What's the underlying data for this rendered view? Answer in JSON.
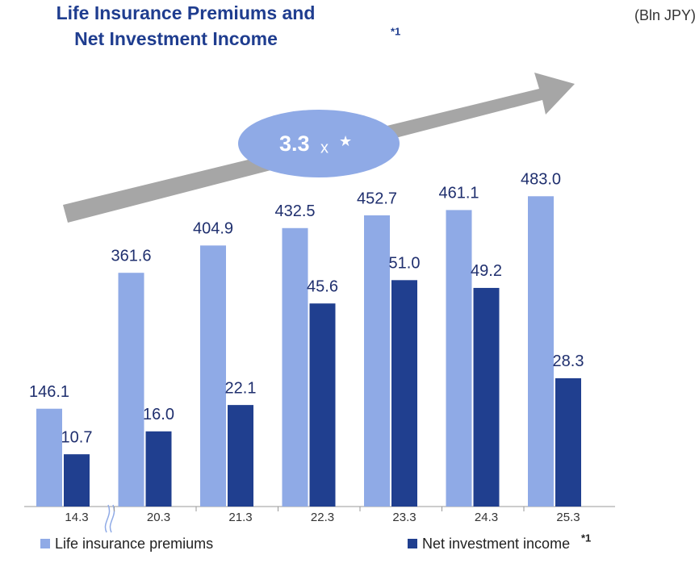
{
  "chart_data": {
    "type": "bar",
    "title": [
      "Life Insurance Premiums and",
      "Net Investment Income"
    ],
    "title_note": "*1",
    "unit": "(Bln JPY)",
    "annotation": {
      "value": "3.3",
      "unit": "x",
      "symbol": "★"
    },
    "categories": [
      "14.3",
      "20.3",
      "21.3",
      "22.3",
      "23.3",
      "24.3",
      "25.3"
    ],
    "ylim": [
      -9,
      500
    ],
    "y2lim": [
      -1.4,
      72.9
    ],
    "series": [
      {
        "name": "Life insurance premiums",
        "color": "#8faae6",
        "values": [
          146.1,
          361.6,
          404.9,
          432.5,
          452.7,
          461.1,
          483.0
        ],
        "value_labels": [
          "146.1",
          "361.6",
          "404.9",
          "432.5",
          "452.7",
          "461.1",
          "483.0"
        ]
      },
      {
        "name": "Net investment income",
        "note": "*1",
        "color": "#203f8f",
        "axis": "y2",
        "values": [
          10.7,
          16.0,
          22.1,
          45.6,
          51.0,
          49.2,
          28.3
        ],
        "value_labels": [
          "10.7",
          "16.0",
          "22.1",
          "45.6",
          "51.0",
          "49.2",
          "28.3"
        ]
      }
    ]
  }
}
